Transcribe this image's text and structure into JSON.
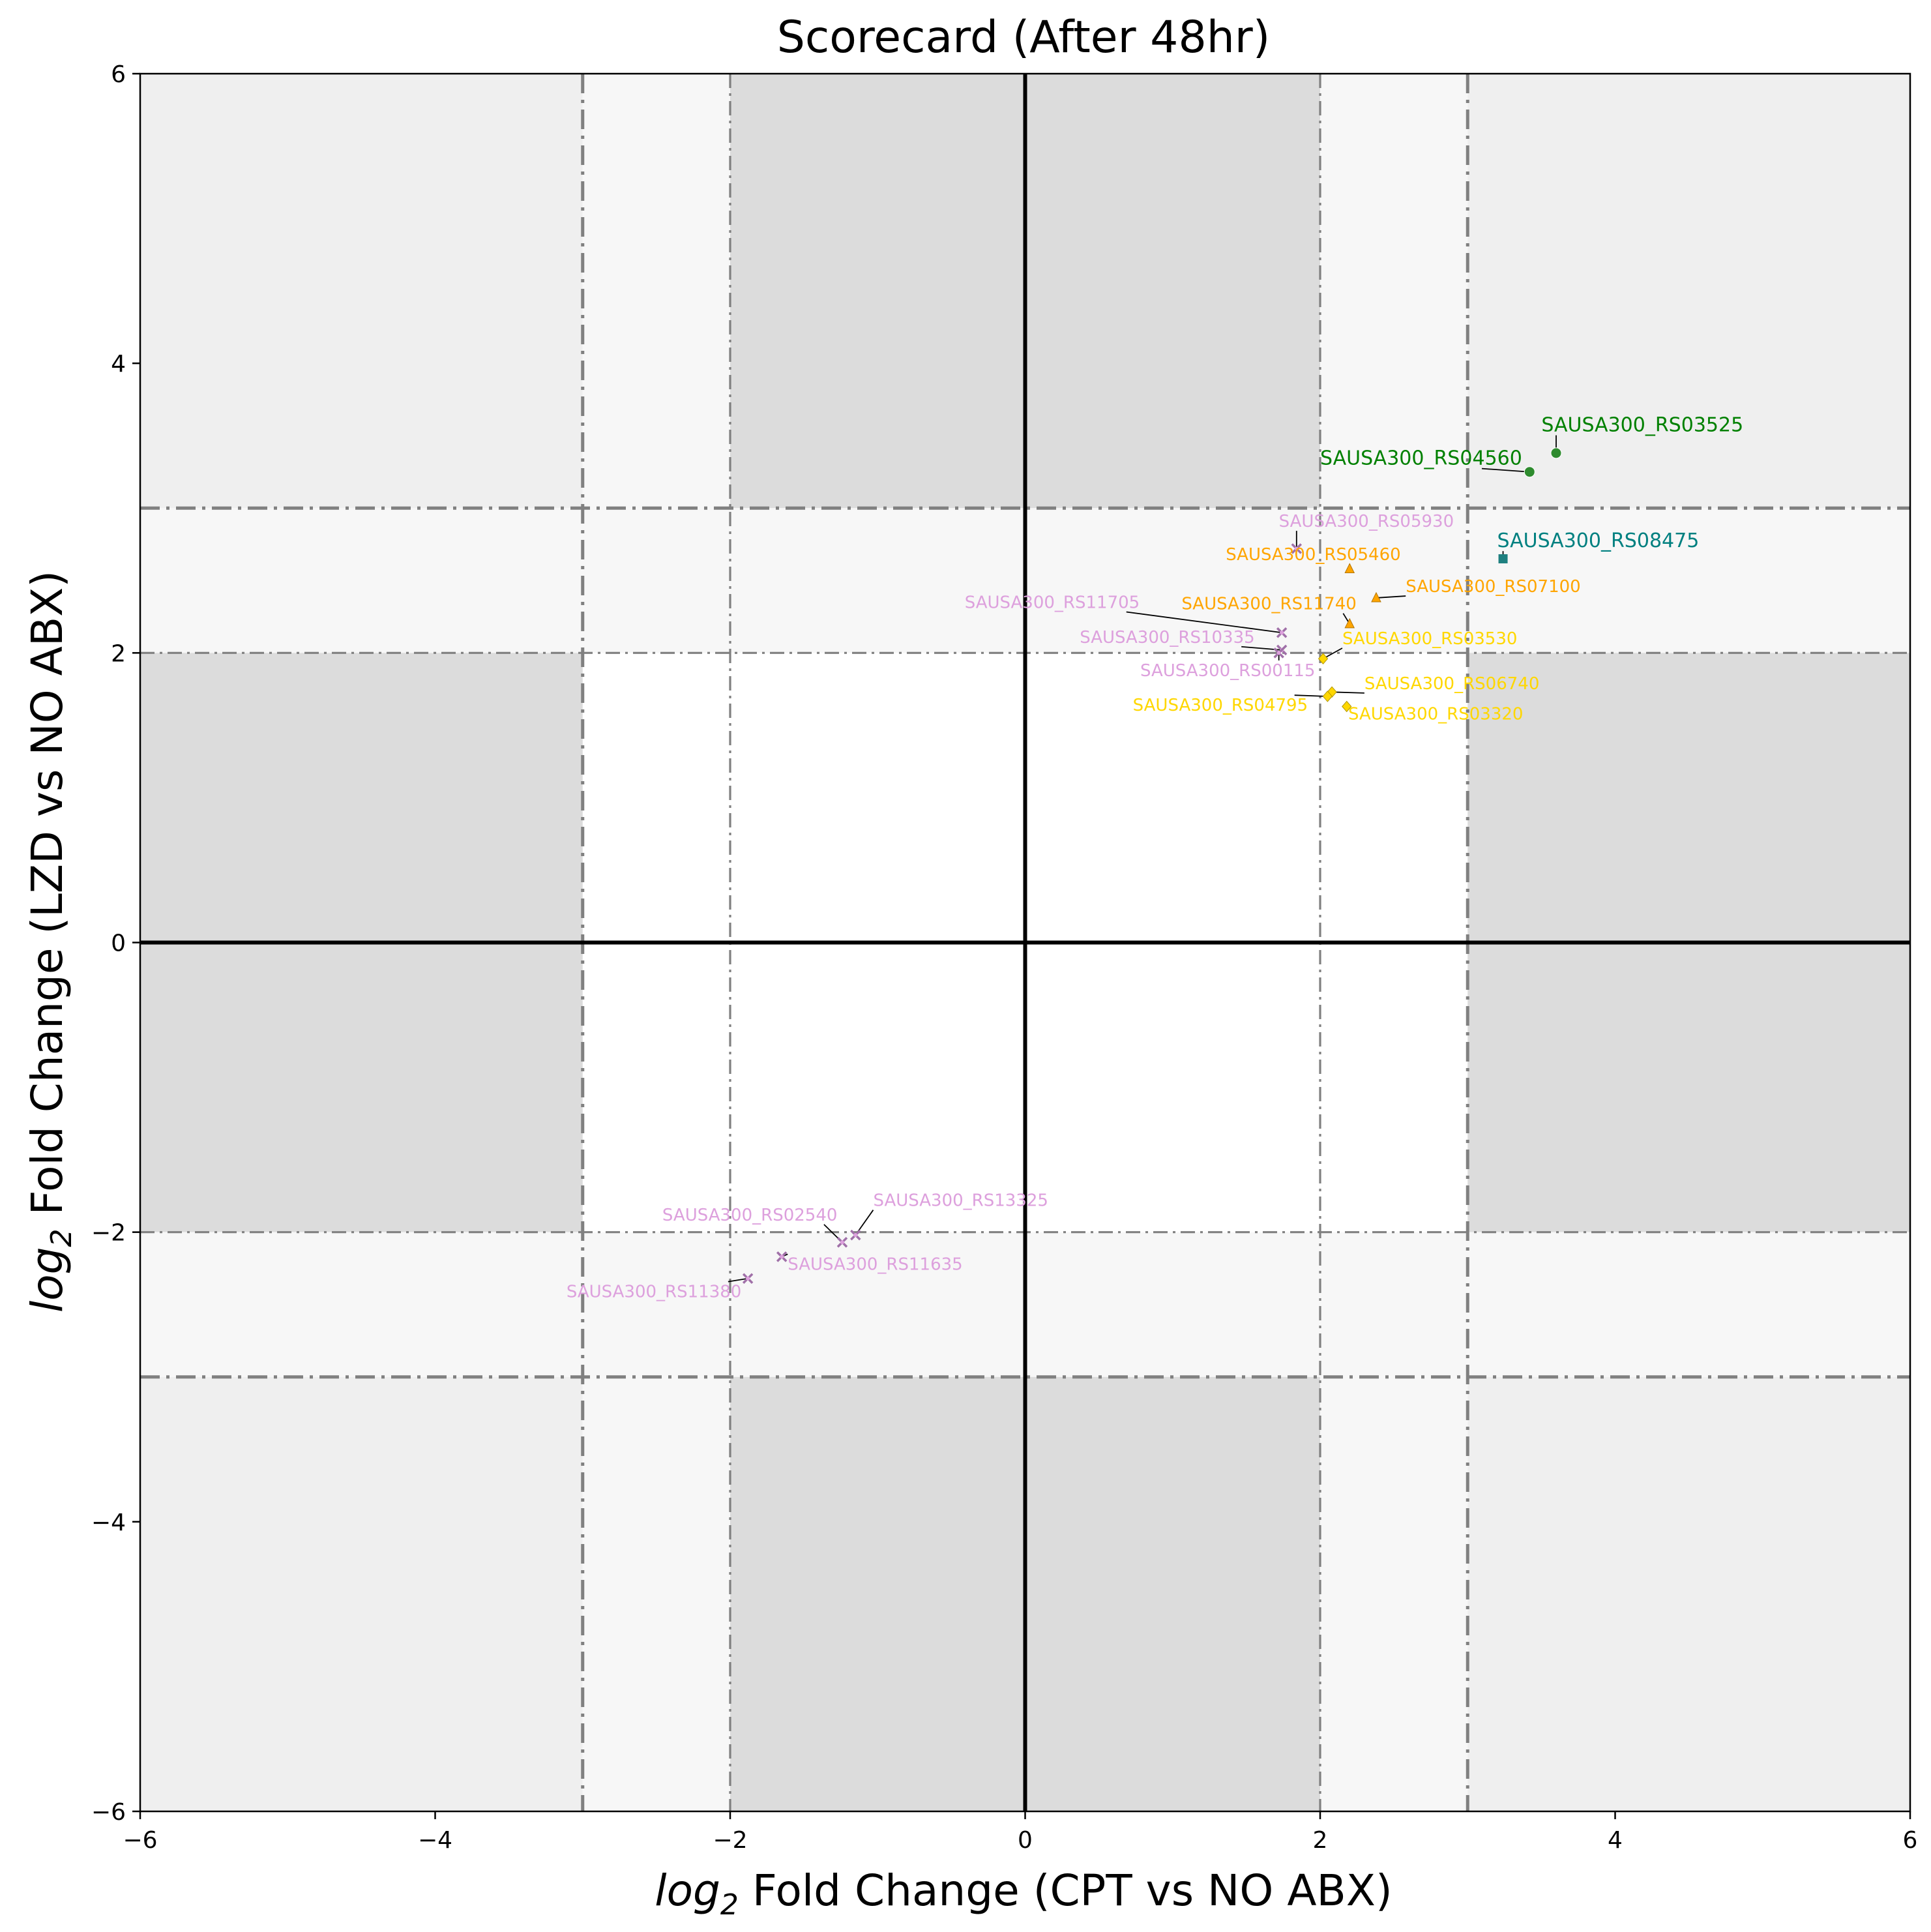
{
  "chart_data": {
    "type": "scatter",
    "title": "Scorecard (After 48hr)",
    "xlabel_math": "log",
    "xlabel_sub": "2",
    "xlabel_rest": " Fold Change (CPT vs NO ABX)",
    "ylabel_math": "log",
    "ylabel_sub": "2",
    "ylabel_rest": " Fold Change (LZD vs NO ABX)",
    "xlim": [
      -6,
      6
    ],
    "ylim": [
      -6,
      6
    ],
    "xticks": [
      -6,
      -4,
      -2,
      0,
      2,
      4,
      6
    ],
    "yticks": [
      -6,
      -4,
      -2,
      0,
      2,
      4,
      6
    ],
    "xtick_labels": [
      "−6",
      "−4",
      "−2",
      "0",
      "2",
      "4",
      "6"
    ],
    "ytick_labels": [
      "−6",
      "−4",
      "−2",
      "0",
      "2",
      "4",
      "6"
    ],
    "regions": [
      {
        "x": [
          -6,
          -3
        ],
        "y": [
          3,
          6
        ],
        "fill": "#efefef"
      },
      {
        "x": [
          -3,
          -2
        ],
        "y": [
          3,
          6
        ],
        "fill": "#f7f7f7"
      },
      {
        "x": [
          -2,
          2
        ],
        "y": [
          3,
          6
        ],
        "fill": "#dcdcdc"
      },
      {
        "x": [
          2,
          3
        ],
        "y": [
          3,
          6
        ],
        "fill": "#f7f7f7"
      },
      {
        "x": [
          3,
          6
        ],
        "y": [
          3,
          6
        ],
        "fill": "#efefef"
      },
      {
        "x": [
          -6,
          6
        ],
        "y": [
          2,
          3
        ],
        "fill": "#f7f7f7"
      },
      {
        "x": [
          -6,
          -3
        ],
        "y": [
          -2,
          2
        ],
        "fill": "#dcdcdc"
      },
      {
        "x": [
          3,
          6
        ],
        "y": [
          -2,
          2
        ],
        "fill": "#dcdcdc"
      },
      {
        "x": [
          -6,
          6
        ],
        "y": [
          -3,
          -2
        ],
        "fill": "#f7f7f7"
      },
      {
        "x": [
          -6,
          -3
        ],
        "y": [
          -6,
          -3
        ],
        "fill": "#efefef"
      },
      {
        "x": [
          -3,
          -2
        ],
        "y": [
          -6,
          -3
        ],
        "fill": "#f7f7f7"
      },
      {
        "x": [
          -2,
          2
        ],
        "y": [
          -6,
          -3
        ],
        "fill": "#dcdcdc"
      },
      {
        "x": [
          2,
          3
        ],
        "y": [
          -6,
          -3
        ],
        "fill": "#f7f7f7"
      },
      {
        "x": [
          3,
          6
        ],
        "y": [
          -6,
          -3
        ],
        "fill": "#efefef"
      }
    ],
    "vlines": [
      {
        "x": -3,
        "style": "major"
      },
      {
        "x": -2,
        "style": "minor"
      },
      {
        "x": 2,
        "style": "minor"
      },
      {
        "x": 3,
        "style": "major"
      }
    ],
    "hlines": [
      {
        "y": 3,
        "style": "major"
      },
      {
        "y": 2,
        "style": "minor"
      },
      {
        "y": -2,
        "style": "minor"
      },
      {
        "y": -3,
        "style": "major"
      }
    ],
    "points": [
      {
        "label": "SAUSA300_RS03525",
        "x": 3.6,
        "y": 3.38,
        "marker": "circle",
        "color": "#2e8b2e",
        "text_color": "#008000",
        "lx": 3.5,
        "ly": 3.53,
        "anchor": "start",
        "size": 26
      },
      {
        "label": "SAUSA300_RS04560",
        "x": 3.42,
        "y": 3.25,
        "marker": "circle",
        "color": "#2e8b2e",
        "text_color": "#008000",
        "lx": 2.0,
        "ly": 3.3,
        "anchor": "start",
        "size": 26
      },
      {
        "label": "SAUSA300_RS08475",
        "x": 3.24,
        "y": 2.65,
        "marker": "square",
        "color": "#1f8080",
        "text_color": "#008080",
        "lx": 3.2,
        "ly": 2.73,
        "anchor": "start",
        "size": 26
      },
      {
        "label": "SAUSA300_RS05460",
        "x": 2.2,
        "y": 2.58,
        "marker": "triangle",
        "color": "#ffa500",
        "text_color": "#ffa500",
        "lx": 1.36,
        "ly": 2.64,
        "anchor": "start",
        "size": 24
      },
      {
        "label": "SAUSA300_RS07100",
        "x": 2.38,
        "y": 2.38,
        "marker": "triangle",
        "color": "#ffa500",
        "text_color": "#ffa500",
        "lx": 2.58,
        "ly": 2.42,
        "anchor": "start",
        "size": 24
      },
      {
        "label": "SAUSA300_RS11740",
        "x": 2.2,
        "y": 2.2,
        "marker": "triangle",
        "color": "#ffa500",
        "text_color": "#ffa500",
        "lx": 1.06,
        "ly": 2.3,
        "anchor": "start",
        "size": 24
      },
      {
        "label": "SAUSA300_RS03530",
        "x": 2.02,
        "y": 1.96,
        "marker": "diamond",
        "color": "#ffd700",
        "text_color": "#ffd700",
        "lx": 2.15,
        "ly": 2.06,
        "anchor": "start",
        "size": 22
      },
      {
        "label": "SAUSA300_RS06740",
        "x": 2.08,
        "y": 1.73,
        "marker": "diamond",
        "color": "#ffd700",
        "text_color": "#ffd700",
        "lx": 2.3,
        "ly": 1.75,
        "anchor": "start",
        "size": 22
      },
      {
        "label": "SAUSA300_RS04795",
        "x": 2.05,
        "y": 1.7,
        "marker": "diamond",
        "color": "#ffd700",
        "text_color": "#ffd700",
        "lx": 0.73,
        "ly": 1.6,
        "anchor": "start",
        "size": 22
      },
      {
        "label": "SAUSA300_RS03320",
        "x": 2.18,
        "y": 1.63,
        "marker": "diamond",
        "color": "#ffd700",
        "text_color": "#ffd700",
        "lx": 2.19,
        "ly": 1.54,
        "anchor": "start",
        "size": 22
      },
      {
        "label": "SAUSA300_RS05930",
        "x": 1.84,
        "y": 2.72,
        "marker": "x",
        "color": "#dda0dd",
        "text_color": "#dda0dd",
        "lx": 1.72,
        "ly": 2.87,
        "anchor": "start",
        "size": 20
      },
      {
        "label": "SAUSA300_RS11705",
        "x": 1.74,
        "y": 2.14,
        "marker": "x",
        "color": "#dda0dd",
        "text_color": "#dda0dd",
        "lx": -0.41,
        "ly": 2.31,
        "anchor": "start",
        "size": 20
      },
      {
        "label": "SAUSA300_RS10335",
        "x": 1.74,
        "y": 2.02,
        "marker": "x",
        "color": "#dda0dd",
        "text_color": "#dda0dd",
        "lx": 0.37,
        "ly": 2.07,
        "anchor": "start",
        "size": 20
      },
      {
        "label": "SAUSA300_RS00115",
        "x": 1.72,
        "y": 2.0,
        "marker": "x",
        "color": "#dda0dd",
        "text_color": "#dda0dd",
        "lx": 0.78,
        "ly": 1.84,
        "anchor": "start",
        "size": 20
      },
      {
        "label": "SAUSA300_RS13325",
        "x": -1.15,
        "y": -2.02,
        "marker": "x",
        "color": "#dda0dd",
        "text_color": "#dda0dd",
        "lx": -1.03,
        "ly": -1.82,
        "anchor": "start",
        "size": 20
      },
      {
        "label": "SAUSA300_RS02540",
        "x": -1.24,
        "y": -2.07,
        "marker": "x",
        "color": "#dda0dd",
        "text_color": "#dda0dd",
        "lx": -2.46,
        "ly": -1.92,
        "anchor": "start",
        "size": 20
      },
      {
        "label": "SAUSA300_RS11635",
        "x": -1.65,
        "y": -2.17,
        "marker": "x",
        "color": "#dda0dd",
        "text_color": "#dda0dd",
        "lx": -1.61,
        "ly": -2.26,
        "anchor": "start",
        "size": 20
      },
      {
        "label": "SAUSA300_RS11380",
        "x": -1.88,
        "y": -2.32,
        "marker": "x",
        "color": "#dda0dd",
        "text_color": "#dda0dd",
        "lx": -3.11,
        "ly": -2.45,
        "anchor": "start",
        "size": 20
      }
    ]
  }
}
